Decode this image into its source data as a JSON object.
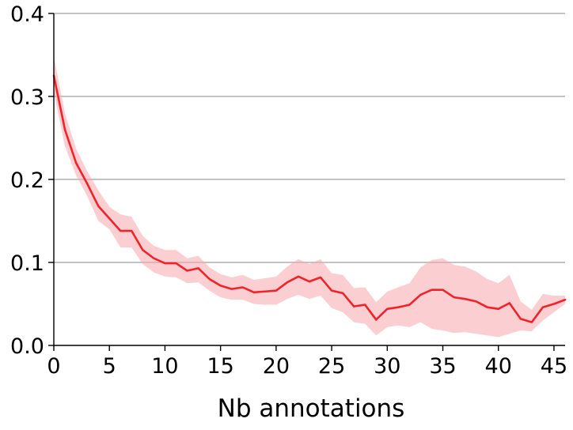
{
  "chart_data": {
    "type": "line",
    "title": "",
    "xlabel": "Nb annotations",
    "ylabel": "",
    "xlim": [
      0,
      46
    ],
    "ylim": [
      0,
      0.4
    ],
    "x_ticks": [
      "0",
      "5",
      "10",
      "15",
      "20",
      "25",
      "30",
      "35",
      "40",
      "45"
    ],
    "y_ticks": [
      "0.0",
      "0.1",
      "0.2",
      "0.3",
      "0.4"
    ],
    "grid": "horizontal",
    "legend": "none",
    "colors": {
      "line": "#f0232a",
      "band": "#f7a7ad",
      "grid": "#b0b0b0",
      "axis": "#000000"
    },
    "series": [
      {
        "x": [
          0,
          1,
          2,
          3,
          4,
          5,
          6,
          7,
          8,
          9,
          10,
          11,
          12,
          13,
          14,
          15,
          16,
          17,
          18,
          19,
          20,
          21,
          22,
          23,
          24,
          25,
          26,
          27,
          28,
          29,
          30,
          31,
          32,
          33,
          34,
          35,
          36,
          37,
          38,
          39,
          40,
          41,
          42,
          43,
          44,
          45,
          46
        ],
        "values": [
          0.325,
          0.26,
          0.22,
          0.195,
          0.168,
          0.153,
          0.138,
          0.138,
          0.115,
          0.105,
          0.099,
          0.099,
          0.09,
          0.093,
          0.08,
          0.072,
          0.068,
          0.07,
          0.064,
          0.065,
          0.066,
          0.076,
          0.083,
          0.077,
          0.082,
          0.066,
          0.063,
          0.047,
          0.049,
          0.031,
          0.044,
          0.046,
          0.049,
          0.061,
          0.067,
          0.067,
          0.058,
          0.056,
          0.053,
          0.046,
          0.044,
          0.051,
          0.032,
          0.028,
          0.046,
          0.05,
          0.055
        ],
        "lower": [
          0.305,
          0.24,
          0.205,
          0.18,
          0.15,
          0.14,
          0.118,
          0.118,
          0.098,
          0.088,
          0.083,
          0.082,
          0.075,
          0.076,
          0.066,
          0.058,
          0.055,
          0.055,
          0.05,
          0.049,
          0.049,
          0.056,
          0.061,
          0.056,
          0.06,
          0.045,
          0.04,
          0.028,
          0.026,
          0.012,
          0.022,
          0.024,
          0.022,
          0.028,
          0.02,
          0.018,
          0.015,
          0.016,
          0.014,
          0.012,
          0.01,
          0.014,
          0.018,
          0.017,
          0.03,
          0.04,
          0.05
        ],
        "upper": [
          0.348,
          0.28,
          0.237,
          0.21,
          0.187,
          0.167,
          0.158,
          0.155,
          0.132,
          0.12,
          0.115,
          0.115,
          0.105,
          0.108,
          0.094,
          0.086,
          0.082,
          0.085,
          0.079,
          0.081,
          0.083,
          0.095,
          0.104,
          0.098,
          0.104,
          0.087,
          0.085,
          0.069,
          0.07,
          0.052,
          0.065,
          0.07,
          0.075,
          0.094,
          0.103,
          0.105,
          0.097,
          0.095,
          0.089,
          0.08,
          0.075,
          0.085,
          0.053,
          0.043,
          0.062,
          0.06,
          0.06
        ]
      }
    ]
  }
}
